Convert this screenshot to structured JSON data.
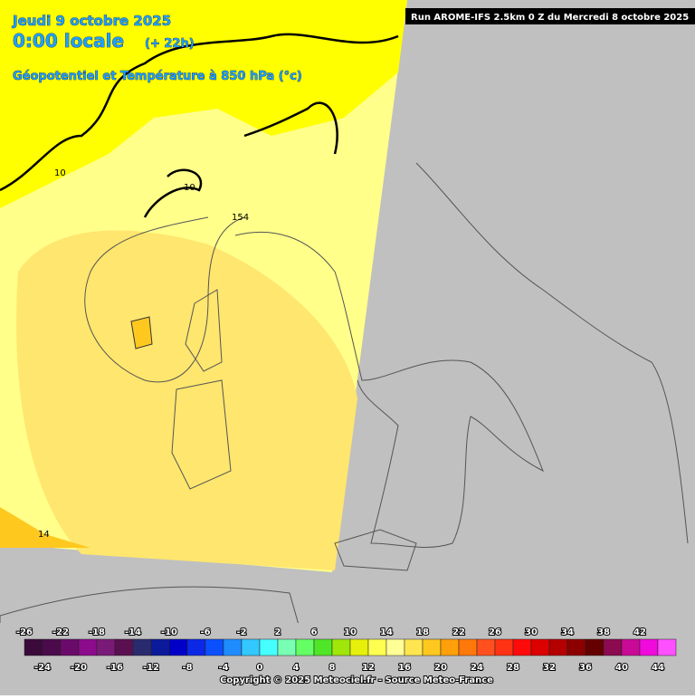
{
  "header": {
    "date": "Jeudi 9 octobre 2025",
    "time": "0:00 locale",
    "offset": "(+ 22h)",
    "field": "Géopotentiel et Température à 850 hPa (°c)",
    "run": "Run AROME-IFS 2.5km 0 Z du Mercredi 8 octobre 2025"
  },
  "contour_labels": [
    10,
    10,
    154,
    14
  ],
  "legend": {
    "stops": [
      {
        "value": -26,
        "color": "#3a0a3a"
      },
      {
        "value": -24,
        "color": "#4b0b4b"
      },
      {
        "value": -22,
        "color": "#6a0a6a"
      },
      {
        "value": -20,
        "color": "#8c0a8c"
      },
      {
        "value": -18,
        "color": "#7a1a78"
      },
      {
        "value": -16,
        "color": "#5a0f50"
      },
      {
        "value": -14,
        "color": "#2a2a6e"
      },
      {
        "value": -12,
        "color": "#0a1a9a"
      },
      {
        "value": -10,
        "color": "#0000c8"
      },
      {
        "value": -8,
        "color": "#0a28e6"
      },
      {
        "value": -6,
        "color": "#0a50ff"
      },
      {
        "value": -4,
        "color": "#1e8cff"
      },
      {
        "value": -2,
        "color": "#32c8ff"
      },
      {
        "value": 0,
        "color": "#46ffff"
      },
      {
        "value": 2,
        "color": "#78ffb4"
      },
      {
        "value": 4,
        "color": "#64ff64"
      },
      {
        "value": 6,
        "color": "#50e628"
      },
      {
        "value": 8,
        "color": "#a0e60a"
      },
      {
        "value": 10,
        "color": "#e6f00a"
      },
      {
        "value": 12,
        "color": "#ffff50"
      },
      {
        "value": 14,
        "color": "#ffff96"
      },
      {
        "value": 16,
        "color": "#ffe650"
      },
      {
        "value": 18,
        "color": "#ffc81e"
      },
      {
        "value": 20,
        "color": "#ffa00a"
      },
      {
        "value": 22,
        "color": "#ff780a"
      },
      {
        "value": 24,
        "color": "#ff501e"
      },
      {
        "value": 26,
        "color": "#ff3214"
      },
      {
        "value": 28,
        "color": "#ff0a0a"
      },
      {
        "value": 30,
        "color": "#dc0000"
      },
      {
        "value": 32,
        "color": "#b40000"
      },
      {
        "value": 34,
        "color": "#8c0000"
      },
      {
        "value": 36,
        "color": "#640000"
      },
      {
        "value": 38,
        "color": "#8c0a50"
      },
      {
        "value": 40,
        "color": "#c80a96"
      },
      {
        "value": 42,
        "color": "#f00adc"
      },
      {
        "value": 44,
        "color": "#ff50ff"
      }
    ]
  },
  "footer": {
    "copyright": "Copyright © 2025 Meteociel.fr - Source Meteo-France"
  }
}
